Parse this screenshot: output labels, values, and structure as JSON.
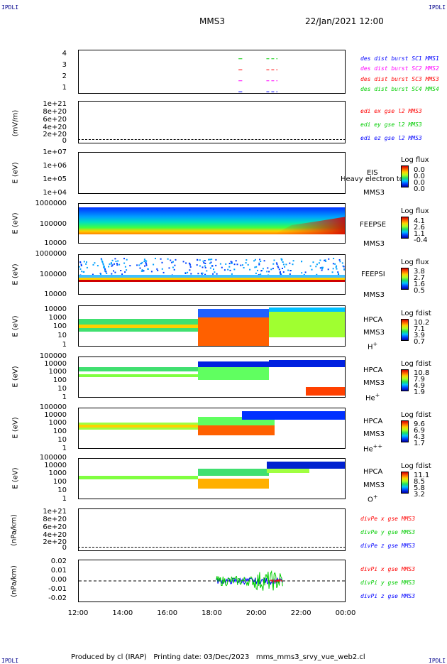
{
  "header": {
    "mission": "MMS3",
    "date": "22/Jan/2021 12:00",
    "corner_tl": "IPDLI",
    "corner_tr": "IPDLI",
    "corner_bl": "IPDLI",
    "corner_br": "IPDLI"
  },
  "footer": {
    "text": "Produced by cl (IRAP)   Printing date: 03/Dec/2023   mms_mms3_srvy_vue_web2.cl"
  },
  "xaxis": {
    "ticks": [
      "12:00",
      "14:00",
      "16:00",
      "18:00",
      "20:00",
      "22:00",
      "00:00"
    ]
  },
  "chart_data": [
    {
      "type": "line",
      "id": "burst",
      "yticks": [
        "4",
        "3",
        "2",
        "1"
      ],
      "ylabel": "",
      "legend": [
        {
          "label": "des dist burst SC1 MMS1",
          "color": "#0000ff"
        },
        {
          "label": "des dist burst SC2 MMS2",
          "color": "#ff00ff"
        },
        {
          "label": "des dist burst SC3 MMS3",
          "color": "#ff0000"
        },
        {
          "label": "des dist burst SC4 MMS4",
          "color": "#00cc00"
        }
      ],
      "x_range": [
        "12:00",
        "00:00"
      ],
      "segments": [
        {
          "y": 4,
          "color": "#00cc00",
          "from": "19:10",
          "to": "19:20"
        },
        {
          "y": 4,
          "color": "#00cc00",
          "from": "20:25",
          "to": "20:55"
        },
        {
          "y": 3,
          "color": "#ff0000",
          "from": "19:10",
          "to": "19:20"
        },
        {
          "y": 3,
          "color": "#ff0000",
          "from": "20:25",
          "to": "20:55"
        },
        {
          "y": 2,
          "color": "#ff00ff",
          "from": "19:10",
          "to": "19:20"
        },
        {
          "y": 2,
          "color": "#ff00ff",
          "from": "20:25",
          "to": "20:55"
        },
        {
          "y": 1,
          "color": "#0000ff",
          "from": "19:10",
          "to": "19:20"
        },
        {
          "y": 1,
          "color": "#0000ff",
          "from": "20:25",
          "to": "20:55"
        }
      ]
    },
    {
      "type": "line",
      "id": "edi",
      "ylabel": "(mV/m)",
      "yticks": [
        "1e+21",
        "8e+20",
        "6e+20",
        "4e+20",
        "2e+20",
        "0"
      ],
      "legend": [
        {
          "label": "edi ex gse l2 MMS3",
          "color": "#ff0000"
        },
        {
          "label": "edi ey gse l2 MMS3",
          "color": "#00cc00"
        },
        {
          "label": "edi ez gse l2 MMS3",
          "color": "#0000ff"
        }
      ]
    },
    {
      "type": "heatmap",
      "id": "eis",
      "ylabel": "E (eV)",
      "yticks": [
        "1e+07",
        "1e+06",
        "1e+05",
        "1e+04"
      ],
      "instrument": "EIS",
      "overlay": "Heavy electron to",
      "spacecraft": "MMS3",
      "cbar_title": "Log flux",
      "cbar_ticks": [
        "0.0",
        "0.0",
        "0.0",
        "0.0"
      ]
    },
    {
      "type": "heatmap",
      "id": "feepse",
      "ylabel": "E (eV)",
      "yticks": [
        "1000000",
        "100000",
        "10000"
      ],
      "instrument": "FEEPSE",
      "spacecraft": "MMS3",
      "cbar_title": "Log flux",
      "cbar_ticks": [
        "4.1",
        "2.6",
        "1.1",
        "-0.4"
      ]
    },
    {
      "type": "heatmap",
      "id": "feepsi",
      "ylabel": "E (eV)",
      "yticks": [
        "1000000",
        "100000",
        "10000"
      ],
      "instrument": "FEEPSI",
      "spacecraft": "MMS3",
      "cbar_title": "Log flux",
      "cbar_ticks": [
        "3.8",
        "2.7",
        "1.6",
        "0.5"
      ]
    },
    {
      "type": "heatmap",
      "id": "hpca_h",
      "ylabel": "E (eV)",
      "yticks": [
        "10000",
        "1000",
        "100",
        "10",
        "1"
      ],
      "instrument": "HPCA",
      "spacecraft": "MMS3",
      "species": "H",
      "species_sup": "+",
      "cbar_title": "Log fdist",
      "cbar_ticks": [
        "10.2",
        "7.1",
        "3.9",
        "0.7"
      ]
    },
    {
      "type": "heatmap",
      "id": "hpca_he",
      "ylabel": "E (eV)",
      "yticks": [
        "100000",
        "10000",
        "1000",
        "100",
        "10",
        "1"
      ],
      "instrument": "HPCA",
      "spacecraft": "MMS3",
      "species": "He",
      "species_sup": "+",
      "cbar_title": "Log fdist",
      "cbar_ticks": [
        "10.8",
        "7.9",
        "4.9",
        "1.9"
      ]
    },
    {
      "type": "heatmap",
      "id": "hpca_hepp",
      "ylabel": "E (eV)",
      "yticks": [
        "100000",
        "10000",
        "1000",
        "100",
        "10",
        "1"
      ],
      "instrument": "HPCA",
      "spacecraft": "MMS3",
      "species": "He",
      "species_sup": "++",
      "cbar_title": "Log fdist",
      "cbar_ticks": [
        "9.6",
        "6.9",
        "4.3",
        "1.7"
      ]
    },
    {
      "type": "heatmap",
      "id": "hpca_o",
      "ylabel": "E (eV)",
      "yticks": [
        "100000",
        "10000",
        "1000",
        "100",
        "10",
        "1"
      ],
      "instrument": "HPCA",
      "spacecraft": "MMS3",
      "species": "O",
      "species_sup": "+",
      "cbar_title": "Log fdist",
      "cbar_ticks": [
        "11.1",
        "8.5",
        "5.8",
        "3.2"
      ]
    },
    {
      "type": "line",
      "id": "divpe",
      "ylabel": "(nPa/km)",
      "yticks": [
        "1e+21",
        "8e+20",
        "6e+20",
        "4e+20",
        "2e+20",
        "0"
      ],
      "legend": [
        {
          "label": "divPe x gse MMS3",
          "color": "#ff0000"
        },
        {
          "label": "divPe y gse MMS3",
          "color": "#00cc00"
        },
        {
          "label": "divPe z gse MMS3",
          "color": "#0000ff"
        }
      ]
    },
    {
      "type": "line",
      "id": "divpi",
      "ylabel": "(nPa/km)",
      "yticks": [
        "0.02",
        "0.01",
        "0.00",
        "-0.01",
        "-0.02"
      ],
      "ylim": [
        -0.025,
        0.025
      ],
      "legend": [
        {
          "label": "divPi x gse MMS3",
          "color": "#ff0000"
        },
        {
          "label": "divPi y gse MMS3",
          "color": "#00cc00"
        },
        {
          "label": "divPi z gse MMS3",
          "color": "#0000ff"
        }
      ],
      "data_interval": [
        "18:10",
        "21:10"
      ]
    }
  ]
}
